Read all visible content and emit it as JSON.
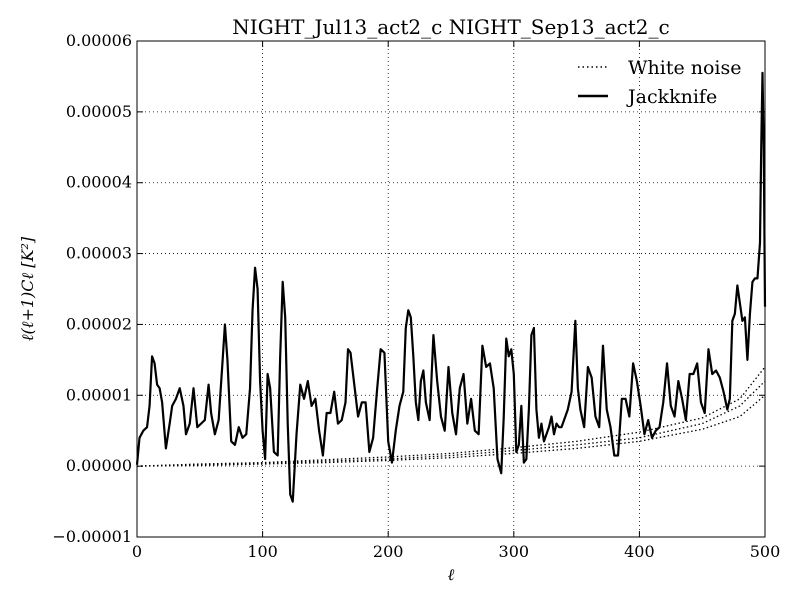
{
  "chart_data": {
    "type": "line",
    "title": "NIGHT_Jul13_act2_c NIGHT_Sep13_act2_c",
    "xlabel": "ℓ",
    "ylabel": "ℓ(ℓ+1)Cℓ [K²]",
    "xlim": [
      0,
      500
    ],
    "ylim": [
      -1e-05,
      6e-05
    ],
    "xticks": [
      0,
      100,
      200,
      300,
      400,
      500
    ],
    "xtick_labels": [
      "0",
      "100",
      "200",
      "300",
      "400",
      "500"
    ],
    "yticks": [
      -1e-05,
      0,
      1e-05,
      2e-05,
      3e-05,
      4e-05,
      5e-05,
      6e-05
    ],
    "ytick_labels": [
      "−0.00001",
      "0.00000",
      "0.00001",
      "0.00002",
      "0.00003",
      "0.00004",
      "0.00005",
      "0.00006"
    ],
    "grid": true,
    "legend_position": "top-right",
    "legend": [
      "White noise",
      "Jackknife"
    ],
    "series": [
      {
        "name": "White noise",
        "style": "dotted",
        "color": "#000000",
        "x": [
          0,
          50,
          100,
          150,
          200,
          250,
          300,
          350,
          400,
          450,
          480,
          500
        ],
        "y": [
          0.0,
          2e-07,
          4e-07,
          7e-07,
          1e-06,
          1.5e-06,
          2.2e-06,
          3e-06,
          4e-06,
          6e-06,
          8.5e-06,
          1.2e-05
        ]
      },
      {
        "name": "White noise",
        "style": "dotted",
        "color": "#000000",
        "x": [
          0,
          50,
          100,
          150,
          200,
          250,
          300,
          350,
          400,
          450,
          480,
          500
        ],
        "y": [
          0.0,
          1e-07,
          3e-07,
          5e-07,
          8e-07,
          1.2e-06,
          1.8e-06,
          2.5e-06,
          3.5e-06,
          5.2e-06,
          7e-06,
          1e-05
        ]
      },
      {
        "name": "White noise",
        "style": "dotted",
        "color": "#000000",
        "x": [
          0,
          50,
          100,
          150,
          200,
          250,
          300,
          350,
          400,
          450,
          480,
          500
        ],
        "y": [
          0.0,
          3e-07,
          5e-07,
          9e-07,
          1.3e-06,
          1.8e-06,
          2.6e-06,
          3.5e-06,
          4.8e-06,
          6.8e-06,
          9.5e-06,
          1.4e-05
        ]
      },
      {
        "name": "Jackknife",
        "style": "solid",
        "color": "#000000",
        "x": [
          0,
          2,
          5,
          8,
          10,
          12,
          14,
          16,
          18,
          20,
          23,
          26,
          28,
          31,
          34,
          37,
          39,
          42,
          45,
          48,
          51,
          54,
          57,
          59,
          62,
          65,
          68,
          70,
          72,
          75,
          78,
          81,
          84,
          87,
          90,
          92,
          94,
          96,
          98,
          100,
          102,
          104,
          106,
          109,
          112,
          114,
          116,
          118,
          120,
          122,
          124,
          127,
          130,
          133,
          136,
          139,
          142,
          145,
          148,
          151,
          154,
          157,
          160,
          163,
          166,
          168,
          170,
          173,
          176,
          179,
          182,
          185,
          188,
          191,
          194,
          197,
          200,
          203,
          206,
          209,
          212,
          214,
          216,
          218,
          220,
          222,
          224,
          226,
          228,
          230,
          233,
          236,
          239,
          242,
          245,
          248,
          251,
          254,
          257,
          260,
          263,
          266,
          269,
          272,
          275,
          278,
          281,
          284,
          287,
          290,
          292,
          294,
          296,
          298,
          300,
          302,
          304,
          306,
          308,
          310,
          312,
          314,
          316,
          318,
          320,
          322,
          324,
          326,
          328,
          330,
          332,
          334,
          336,
          338,
          340,
          343,
          346,
          349,
          351,
          353,
          356,
          359,
          362,
          365,
          368,
          371,
          374,
          377,
          380,
          383,
          386,
          389,
          392,
          395,
          398,
          401,
          404,
          407,
          410,
          413,
          416,
          419,
          422,
          425,
          428,
          431,
          434,
          437,
          440,
          443,
          446,
          449,
          452,
          455,
          458,
          461,
          464,
          467,
          470,
          472,
          474,
          476,
          478,
          480,
          482,
          484,
          486,
          488,
          490,
          492,
          494,
          496,
          497,
          498,
          499,
          500
        ],
        "y": [
          2e-07,
          4e-06,
          5e-06,
          5.5e-06,
          8.5e-06,
          1.55e-05,
          1.45e-05,
          1.15e-05,
          1.1e-05,
          9e-06,
          2.5e-06,
          6e-06,
          8.5e-06,
          9.5e-06,
          1.1e-05,
          8.5e-06,
          4.5e-06,
          6e-06,
          1.1e-05,
          5.5e-06,
          6e-06,
          6.5e-06,
          1.15e-05,
          7.5e-06,
          4.5e-06,
          6.5e-06,
          1.45e-05,
          2e-05,
          1.5e-05,
          3.5e-06,
          3e-06,
          5.5e-06,
          4e-06,
          4.5e-06,
          1.1e-05,
          2.2e-05,
          2.8e-05,
          2.5e-05,
          1.2e-05,
          5e-06,
          1e-06,
          1.3e-05,
          1.1e-05,
          2e-06,
          1.5e-06,
          1.55e-05,
          2.6e-05,
          2.1e-05,
          6e-06,
          -4e-06,
          -5e-06,
          4.5e-06,
          1.15e-05,
          9.5e-06,
          1.2e-05,
          8.5e-06,
          9.5e-06,
          5e-06,
          1.5e-06,
          7.5e-06,
          7.5e-06,
          1.05e-05,
          6e-06,
          6.5e-06,
          9e-06,
          1.65e-05,
          1.6e-05,
          1.15e-05,
          7e-06,
          9e-06,
          9e-06,
          2e-06,
          4e-06,
          1.05e-05,
          1.65e-05,
          1.6e-05,
          3.5e-06,
          5e-07,
          5e-06,
          8.5e-06,
          1.05e-05,
          1.95e-05,
          2.2e-05,
          2.1e-05,
          1.55e-05,
          9e-06,
          6.5e-06,
          1.2e-05,
          1.35e-05,
          9e-06,
          6.5e-06,
          1.85e-05,
          1.2e-05,
          7e-06,
          5e-06,
          1.4e-05,
          7.5e-06,
          4.5e-06,
          1.1e-05,
          1.3e-05,
          6e-06,
          9.5e-06,
          5e-06,
          4.5e-06,
          1.7e-05,
          1.4e-05,
          1.45e-05,
          1.1e-05,
          1e-06,
          -1e-06,
          7e-06,
          1.8e-05,
          1.55e-05,
          1.65e-05,
          1.3e-05,
          2e-06,
          3e-06,
          8.5e-06,
          5e-07,
          1e-06,
          8e-06,
          1.85e-05,
          1.95e-05,
          8e-06,
          4e-06,
          6e-06,
          3.5e-06,
          4.5e-06,
          5.5e-06,
          7e-06,
          4.5e-06,
          6e-06,
          5.5e-06,
          5.5e-06,
          6.5e-06,
          8e-06,
          1.05e-05,
          2.05e-05,
          1.1e-05,
          8e-06,
          5.5e-06,
          1.4e-05,
          1.25e-05,
          7e-06,
          5.5e-06,
          1.7e-05,
          8e-06,
          5.5e-06,
          1.5e-06,
          1.5e-06,
          9.5e-06,
          9.5e-06,
          7e-06,
          1.45e-05,
          1.2e-05,
          8.5e-06,
          4.5e-06,
          6.5e-06,
          4e-06,
          5e-06,
          5.5e-06,
          9e-06,
          1.45e-05,
          8.5e-06,
          7e-06,
          1.2e-05,
          9.5e-06,
          6.5e-06,
          1.3e-05,
          1.3e-05,
          1.45e-05,
          9e-06,
          7.5e-06,
          1.65e-05,
          1.3e-05,
          1.35e-05,
          1.25e-05,
          1.05e-05,
          8e-06,
          9.5e-06,
          2.05e-05,
          2.15e-05,
          2.55e-05,
          2.3e-05,
          2.05e-05,
          2.1e-05,
          1.5e-05,
          2.15e-05,
          2.6e-05,
          2.65e-05,
          2.65e-05,
          3.15e-05,
          4.5e-05,
          5.55e-05,
          4.5e-05,
          2.25e-05
        ]
      }
    ]
  }
}
